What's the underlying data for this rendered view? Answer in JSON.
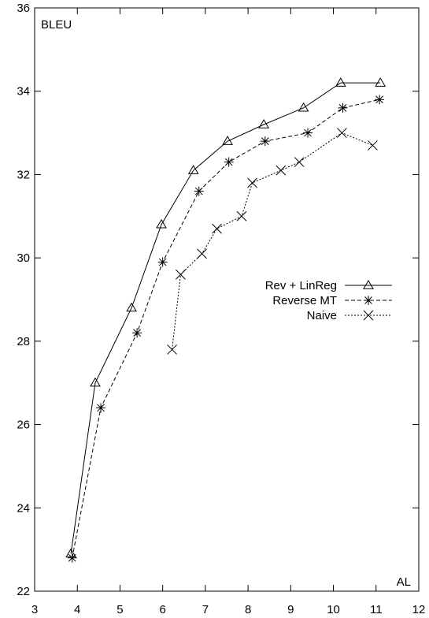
{
  "chart_data": {
    "type": "line",
    "xlabel": "AL",
    "ylabel": "BLEU",
    "xlim": [
      3,
      12
    ],
    "ylim": [
      22,
      36
    ],
    "xticks": [
      3,
      4,
      5,
      6,
      7,
      8,
      9,
      10,
      11,
      12
    ],
    "yticks": [
      22,
      24,
      26,
      28,
      30,
      32,
      34,
      36
    ],
    "grid": false,
    "legend_position": "right",
    "series": [
      {
        "name": "Rev + LinReg",
        "marker": "triangle",
        "line_style": "solid",
        "x": [
          3.85,
          4.42,
          5.27,
          5.97,
          6.72,
          7.52,
          8.37,
          9.3,
          10.17,
          11.1
        ],
        "y": [
          22.9,
          27.0,
          28.8,
          30.8,
          32.1,
          32.8,
          33.2,
          33.6,
          34.2,
          34.2
        ]
      },
      {
        "name": "Reverse MT",
        "marker": "asterisk",
        "line_style": "dashed",
        "x": [
          3.88,
          4.55,
          5.4,
          6.0,
          6.85,
          7.55,
          8.4,
          9.4,
          10.22,
          11.08
        ],
        "y": [
          22.8,
          26.4,
          28.2,
          29.9,
          31.6,
          32.3,
          32.8,
          33.0,
          33.6,
          33.8
        ]
      },
      {
        "name": "Naive",
        "marker": "x",
        "line_style": "dotted",
        "x": [
          6.22,
          6.42,
          6.92,
          7.27,
          7.85,
          8.1,
          8.77,
          9.2,
          10.2,
          10.92
        ],
        "y": [
          27.8,
          29.6,
          30.1,
          30.7,
          31.0,
          31.8,
          32.1,
          32.3,
          33.0,
          32.7
        ]
      }
    ]
  }
}
